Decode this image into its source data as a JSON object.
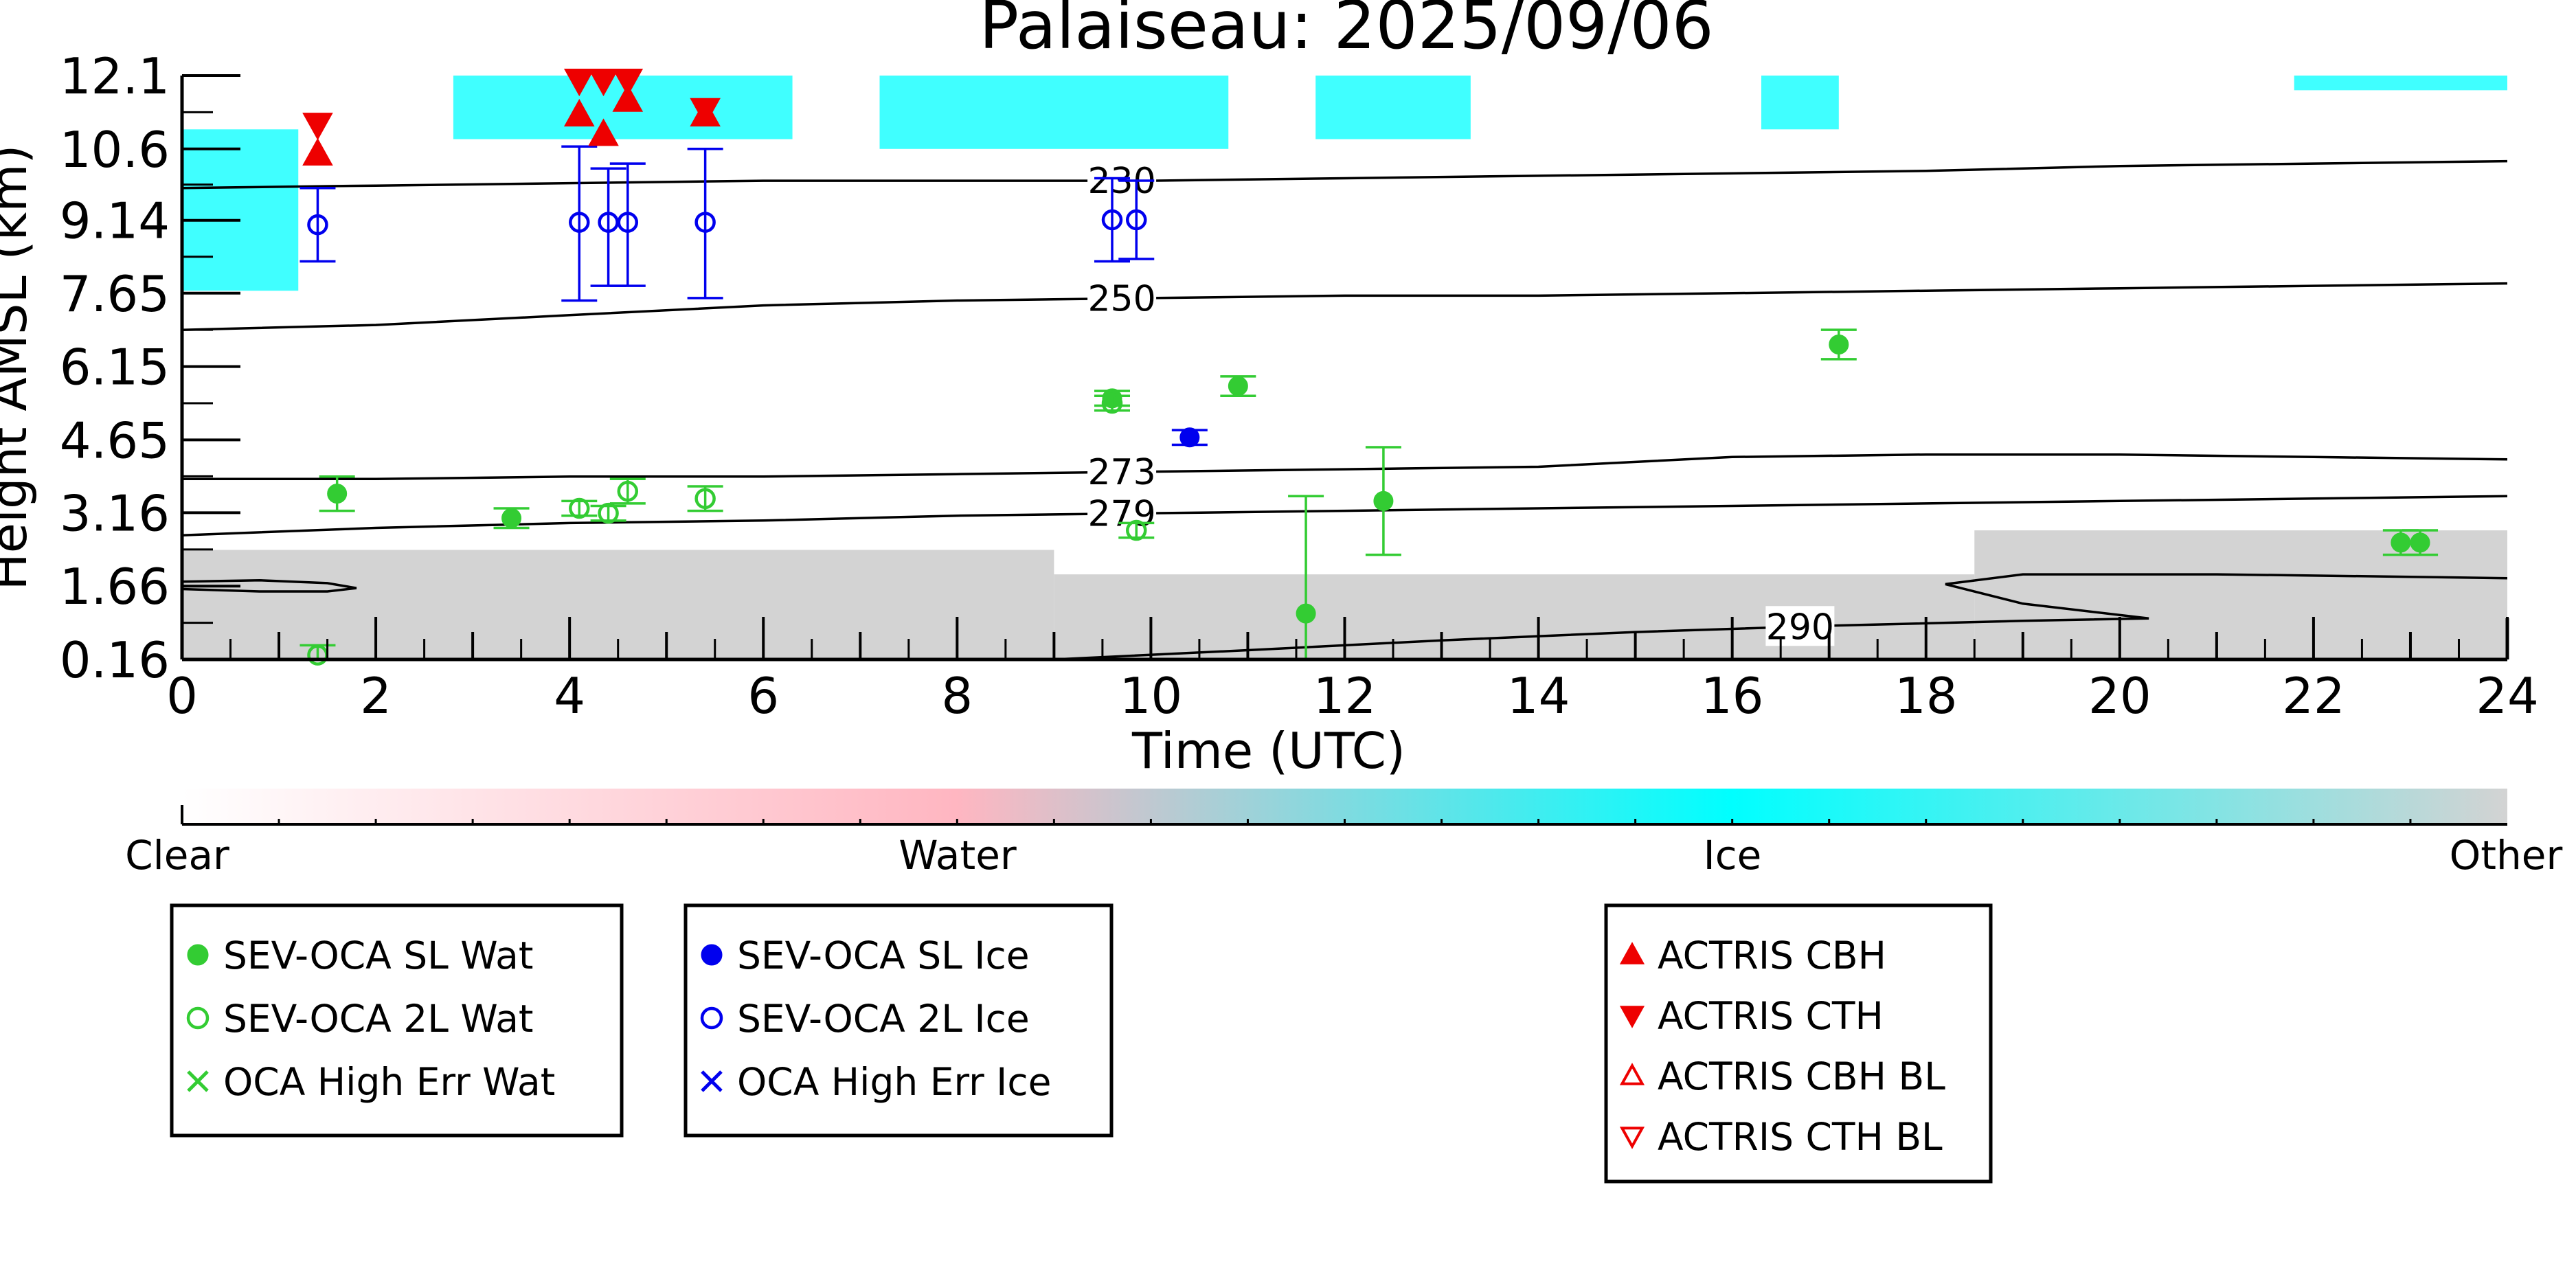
{
  "chart_data": {
    "type": "scatter",
    "title": "Palaiseau: 2025/09/06",
    "xlabel": "Time (UTC)",
    "ylabel": "Height AMSL (km)",
    "xlim": [
      0,
      24
    ],
    "ylim": [
      0.16,
      12.1
    ],
    "x_ticks": [
      "0",
      "2",
      "4",
      "6",
      "8",
      "10",
      "12",
      "14",
      "16",
      "18",
      "20",
      "22",
      "24"
    ],
    "y_ticks": [
      "0.16",
      "1.66",
      "3.16",
      "4.65",
      "6.15",
      "7.65",
      "9.14",
      "10.6",
      "12.1"
    ],
    "grid": false,
    "colorbar": {
      "labels": [
        "Clear",
        "Water",
        "Ice",
        "Other"
      ],
      "colors": [
        "#ffffff",
        "#ffb6c1",
        "#00ffff",
        "#d3d3d3"
      ]
    },
    "background_classification": {
      "description_free": true,
      "ice_color": "#00ffff",
      "other_color": "#d3d3d3",
      "ice_regions": [
        {
          "x": [
            0.0,
            1.2
          ],
          "y": [
            7.7,
            11.0
          ]
        },
        {
          "x": [
            2.8,
            6.3
          ],
          "y": [
            10.8,
            12.1
          ]
        },
        {
          "x": [
            7.2,
            10.8
          ],
          "y": [
            10.6,
            12.1
          ]
        },
        {
          "x": [
            11.7,
            13.3
          ],
          "y": [
            10.8,
            12.1
          ]
        },
        {
          "x": [
            16.3,
            17.1
          ],
          "y": [
            11.0,
            12.1
          ]
        },
        {
          "x": [
            21.8,
            24.0
          ],
          "y": [
            11.8,
            12.1
          ]
        }
      ],
      "other_regions": [
        {
          "x": [
            0.0,
            9.0
          ],
          "y": [
            0.16,
            2.4
          ]
        },
        {
          "x": [
            9.0,
            18.5
          ],
          "y": [
            0.16,
            1.9
          ]
        },
        {
          "x": [
            18.5,
            24.0
          ],
          "y": [
            0.16,
            2.8
          ]
        }
      ]
    },
    "contours": [
      {
        "label": "230",
        "label_x": 9.7,
        "x": [
          0,
          2,
          4,
          6,
          8,
          10,
          12,
          14,
          16,
          18,
          20,
          22,
          24
        ],
        "y": [
          9.8,
          9.85,
          9.9,
          9.95,
          9.95,
          9.95,
          10.0,
          10.05,
          10.1,
          10.15,
          10.25,
          10.3,
          10.35
        ]
      },
      {
        "label": "250",
        "label_x": 9.7,
        "x": [
          0,
          2,
          4,
          6,
          8,
          10,
          12,
          14,
          16,
          18,
          20,
          22,
          24
        ],
        "y": [
          6.9,
          7.0,
          7.2,
          7.4,
          7.5,
          7.55,
          7.6,
          7.6,
          7.65,
          7.7,
          7.75,
          7.8,
          7.85
        ]
      },
      {
        "label": "273",
        "label_x": 9.7,
        "x": [
          0,
          2,
          4,
          6,
          8,
          10,
          12,
          14,
          16,
          18,
          20,
          22,
          24
        ],
        "y": [
          3.85,
          3.85,
          3.9,
          3.9,
          3.95,
          4.0,
          4.05,
          4.1,
          4.3,
          4.35,
          4.35,
          4.3,
          4.25
        ]
      },
      {
        "label": "279",
        "label_x": 9.7,
        "x": [
          0,
          2,
          4,
          6,
          8,
          10,
          12,
          14,
          16,
          18,
          20,
          22,
          24
        ],
        "y": [
          2.7,
          2.85,
          2.95,
          3.0,
          3.1,
          3.15,
          3.2,
          3.25,
          3.3,
          3.35,
          3.4,
          3.45,
          3.5
        ]
      },
      {
        "label": "290",
        "label_x": 16.7,
        "x": [
          9.0,
          11.0,
          13.0,
          15.0,
          17.0,
          19.0,
          20.3,
          19.0,
          18.2,
          19.0,
          21.0,
          23.0,
          24.0
        ],
        "y": [
          0.16,
          0.35,
          0.55,
          0.72,
          0.85,
          0.95,
          1.0,
          1.3,
          1.7,
          1.9,
          1.9,
          1.85,
          1.82
        ]
      },
      {
        "label": "",
        "label_x": null,
        "x": [
          0.0,
          0.8,
          1.5,
          1.8,
          1.5,
          0.8,
          0.0
        ],
        "y": [
          1.75,
          1.78,
          1.72,
          1.62,
          1.55,
          1.55,
          1.6
        ]
      }
    ],
    "series": [
      {
        "name": "SEV-OCA SL Wat",
        "marker": "filled-circle",
        "color": "#33cc33",
        "x": [
          1.6,
          3.4,
          9.6,
          10.9,
          11.6,
          12.4,
          17.1,
          22.9,
          23.1
        ],
        "y": [
          3.55,
          3.05,
          5.5,
          5.75,
          1.1,
          3.4,
          6.6,
          2.55,
          2.55
        ],
        "err_low": [
          0.35,
          0.2,
          0.15,
          0.2,
          2.4,
          1.1,
          0.3,
          0.25,
          0.25
        ],
        "err_high": [
          0.35,
          0.2,
          0.15,
          0.2,
          2.4,
          1.1,
          0.3,
          0.25,
          0.25
        ]
      },
      {
        "name": "SEV-OCA 2L Wat",
        "marker": "open-circle",
        "color": "#33cc33",
        "x": [
          1.4,
          4.1,
          4.4,
          4.6,
          5.4,
          9.6,
          9.85
        ],
        "y": [
          0.25,
          3.25,
          3.15,
          3.6,
          3.45,
          5.4,
          2.8
        ],
        "err_low": [
          0.2,
          0.15,
          0.15,
          0.25,
          0.25,
          0.15,
          0.15
        ],
        "err_high": [
          0.2,
          0.15,
          0.15,
          0.25,
          0.25,
          0.15,
          0.15
        ]
      },
      {
        "name": "OCA High Err Wat",
        "marker": "x",
        "color": "#33cc33",
        "x": [],
        "y": []
      },
      {
        "name": "SEV-OCA SL Ice",
        "marker": "filled-circle",
        "color": "#0000ee",
        "x": [
          10.4
        ],
        "y": [
          4.7
        ],
        "err_low": [
          0.15
        ],
        "err_high": [
          0.15
        ]
      },
      {
        "name": "SEV-OCA 2L Ice",
        "marker": "open-circle",
        "color": "#0000ee",
        "x": [
          1.4,
          4.1,
          4.4,
          4.6,
          5.4,
          9.6,
          9.85
        ],
        "y": [
          9.05,
          9.1,
          9.1,
          9.1,
          9.1,
          9.15,
          9.15
        ],
        "err_low": [
          0.75,
          1.6,
          1.3,
          1.3,
          1.55,
          0.85,
          0.8
        ],
        "err_high": [
          0.75,
          1.55,
          1.1,
          1.2,
          1.5,
          0.85,
          0.8
        ]
      },
      {
        "name": "OCA High Err Ice",
        "marker": "x",
        "color": "#0000ee",
        "x": [],
        "y": []
      },
      {
        "name": "ACTRIS CBH",
        "marker": "triangle-up-filled",
        "color": "#ee0000",
        "x": [
          1.4,
          4.1,
          4.35,
          4.6,
          5.4
        ],
        "y": [
          10.5,
          11.3,
          10.9,
          11.6,
          11.3
        ]
      },
      {
        "name": "ACTRIS CTH",
        "marker": "triangle-down-filled",
        "color": "#ee0000",
        "x": [
          1.4,
          4.1,
          4.35,
          4.6,
          5.4
        ],
        "y": [
          11.1,
          12.0,
          12.0,
          12.0,
          11.4
        ]
      },
      {
        "name": "ACTRIS CBH BL",
        "marker": "triangle-up-open",
        "color": "#ee0000",
        "x": [],
        "y": []
      },
      {
        "name": "ACTRIS CTH BL",
        "marker": "triangle-down-open",
        "color": "#ee0000",
        "x": [],
        "y": []
      }
    ],
    "legend_boxes": [
      {
        "entries": [
          {
            "label": "SEV-OCA SL Wat",
            "marker": "filled-circle",
            "color": "#33cc33"
          },
          {
            "label": "SEV-OCA 2L Wat",
            "marker": "open-circle",
            "color": "#33cc33"
          },
          {
            "label": "OCA High Err Wat",
            "marker": "x",
            "color": "#33cc33"
          }
        ]
      },
      {
        "entries": [
          {
            "label": "SEV-OCA SL Ice",
            "marker": "filled-circle",
            "color": "#0000ee"
          },
          {
            "label": "SEV-OCA 2L Ice",
            "marker": "open-circle",
            "color": "#0000ee"
          },
          {
            "label": "OCA High Err Ice",
            "marker": "x",
            "color": "#0000ee"
          }
        ]
      },
      {
        "entries": [
          {
            "label": "ACTRIS CBH",
            "marker": "triangle-up-filled",
            "color": "#ee0000"
          },
          {
            "label": "ACTRIS CTH",
            "marker": "triangle-down-filled",
            "color": "#ee0000"
          },
          {
            "label": "ACTRIS CBH BL",
            "marker": "triangle-up-open",
            "color": "#ee0000"
          },
          {
            "label": "ACTRIS CTH BL",
            "marker": "triangle-down-open",
            "color": "#ee0000"
          }
        ]
      }
    ],
    "legend_placement": "below"
  }
}
